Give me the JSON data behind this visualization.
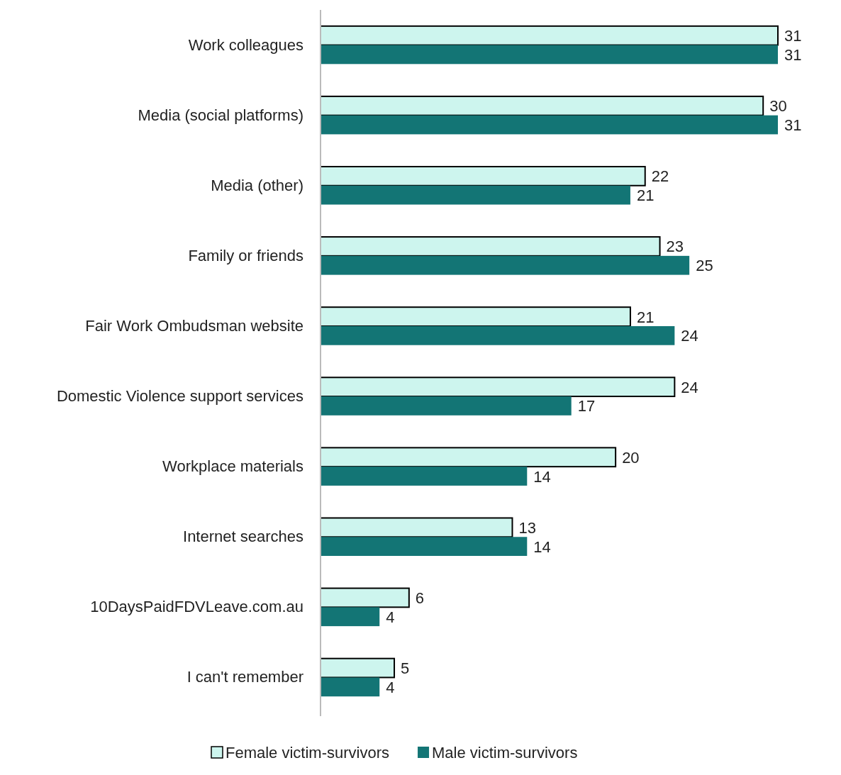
{
  "chart_data": {
    "type": "bar",
    "orientation": "horizontal",
    "categories": [
      "Work colleagues",
      "Media (social platforms)",
      "Media (other)",
      "Family or friends",
      "Fair Work Ombudsman website",
      "Domestic Violence support services",
      "Workplace materials",
      "Internet searches",
      "10DaysPaidFDVLeave.com.au",
      "I can't remember"
    ],
    "series": [
      {
        "name": "Female victim-survivors",
        "color": "#cdf5ee",
        "values": [
          31,
          30,
          22,
          23,
          21,
          24,
          20,
          13,
          6,
          5
        ]
      },
      {
        "name": "Male victim-survivors",
        "color": "#137575",
        "values": [
          31,
          31,
          21,
          25,
          24,
          17,
          14,
          14,
          4,
          4
        ]
      }
    ],
    "data_labels": true,
    "legend": "bottom"
  }
}
